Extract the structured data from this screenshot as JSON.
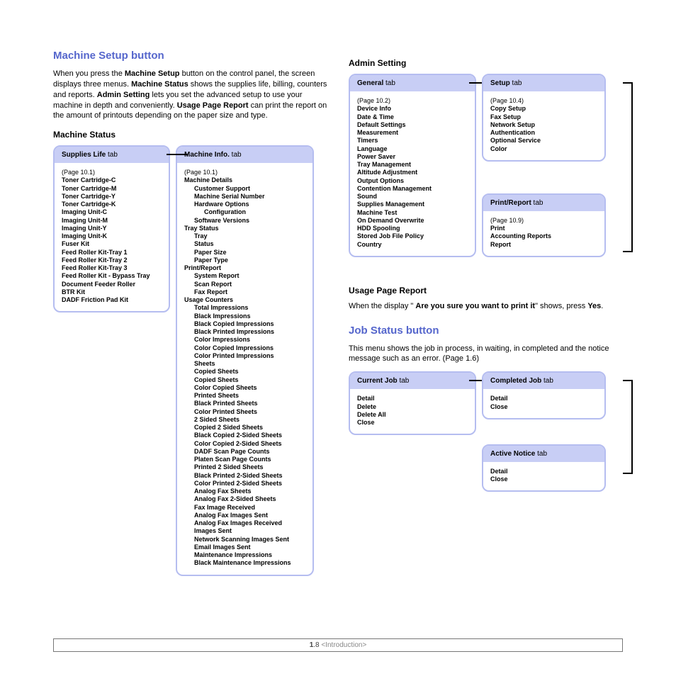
{
  "colors": {
    "accent": "#5566cc",
    "box_border": "#b5bdf0",
    "box_header_bg": "#c8cef5"
  },
  "left": {
    "heading": "Machine Setup button",
    "intro_parts": [
      "When you press the ",
      "Machine Setup",
      " button on the control panel, the screen displays three menus. ",
      "Machine Status",
      " shows the supplies life, billing, counters and reports. ",
      "Admin Setting",
      " lets you set the advanced setup to use your machine in depth and conveniently. ",
      "Usage Page Report",
      " can print the report on the amount of printouts depending on the paper size and type."
    ],
    "section": "Machine Status",
    "supplies": {
      "tab": "Supplies Life",
      "suffix": " tab",
      "page": "(Page 10.1)",
      "items": [
        "Toner Cartridge-C",
        "Toner Cartridge-M",
        "Toner Cartridge-Y",
        "Toner Cartridge-K",
        "Imaging Unit-C",
        "Imaging Unit-M",
        "Imaging Unit-Y",
        "Imaging Unit-K",
        "Fuser Kit",
        "Feed Roller Kit-Tray 1",
        "Feed Roller Kit-Tray 2",
        "Feed Roller Kit-Tray 3",
        "Feed Roller Kit - Bypass Tray",
        "Document Feeder Roller",
        "BTR Kit",
        "DADF Friction Pad Kit"
      ]
    },
    "machineinfo": {
      "tab": "Machine Info.",
      "suffix": " tab",
      "page": "(Page 10.1)",
      "tree": [
        {
          "l": 0,
          "t": "Machine Details"
        },
        {
          "l": 1,
          "t": "Customer Support"
        },
        {
          "l": 1,
          "t": "Machine Serial Number"
        },
        {
          "l": 1,
          "t": "Hardware Options"
        },
        {
          "l": 2,
          "t": "Configuration"
        },
        {
          "l": 1,
          "t": "Software Versions"
        },
        {
          "l": 0,
          "t": "Tray Status"
        },
        {
          "l": 1,
          "t": "Tray"
        },
        {
          "l": 1,
          "t": "Status"
        },
        {
          "l": 1,
          "t": "Paper Size"
        },
        {
          "l": 1,
          "t": "Paper Type"
        },
        {
          "l": 0,
          "t": "Print/Report"
        },
        {
          "l": 1,
          "t": "System Report"
        },
        {
          "l": 1,
          "t": "Scan Report"
        },
        {
          "l": 1,
          "t": "Fax Report"
        },
        {
          "l": 0,
          "t": "Usage Counters"
        },
        {
          "l": 1,
          "t": "Total Impressions"
        },
        {
          "l": 1,
          "t": "Black Impressions"
        },
        {
          "l": 1,
          "t": "Black Copied Impressions"
        },
        {
          "l": 1,
          "t": "Black Printed Impressions"
        },
        {
          "l": 1,
          "t": "Color Impressions"
        },
        {
          "l": 1,
          "t": "Color Copied Impressions"
        },
        {
          "l": 1,
          "t": "Color Printed Impressions"
        },
        {
          "l": 1,
          "t": "Sheets"
        },
        {
          "l": 1,
          "t": "Copied Sheets"
        },
        {
          "l": 1,
          "t": "Copied Sheets"
        },
        {
          "l": 1,
          "t": "Color Copied Sheets"
        },
        {
          "l": 1,
          "t": "Printed Sheets"
        },
        {
          "l": 1,
          "t": "Black Printed Sheets"
        },
        {
          "l": 1,
          "t": "Color Printed Sheets"
        },
        {
          "l": 1,
          "t": "2 Sided Sheets"
        },
        {
          "l": 1,
          "t": "Copied 2 Sided Sheets"
        },
        {
          "l": 1,
          "t": "Black Copied 2-Sided Sheets"
        },
        {
          "l": 1,
          "t": "Color Copied 2-Sided Sheets"
        },
        {
          "l": 1,
          "t": "DADF Scan Page Counts"
        },
        {
          "l": 1,
          "t": "Platen Scan Page Counts"
        },
        {
          "l": 1,
          "t": "Printed 2 Sided Sheets"
        },
        {
          "l": 1,
          "t": "Black Printed 2-Sided Sheets"
        },
        {
          "l": 1,
          "t": "Color Printed 2-Sided Sheets"
        },
        {
          "l": 1,
          "t": "Analog Fax Sheets"
        },
        {
          "l": 1,
          "t": "Analog Fax 2-Sided Sheets"
        },
        {
          "l": 1,
          "t": "Fax Image Received"
        },
        {
          "l": 1,
          "t": "Analog Fax Images Sent"
        },
        {
          "l": 1,
          "t": "Analog Fax Images Received"
        },
        {
          "l": 1,
          "t": "Images Sent"
        },
        {
          "l": 1,
          "t": "Network Scanning Images Sent"
        },
        {
          "l": 1,
          "t": "Email Images Sent"
        },
        {
          "l": 1,
          "t": "Maintenance Impressions"
        },
        {
          "l": 1,
          "t": "Black Maintenance Impressions"
        }
      ]
    }
  },
  "right": {
    "admin": {
      "heading": "Admin Setting",
      "general": {
        "tab": "General",
        "suffix": " tab",
        "page": "(Page 10.2)",
        "items": [
          "Device Info",
          "Date & Time",
          "Default Settings",
          "Measurement",
          "Timers",
          "Language",
          "Power Saver",
          "Tray Management",
          "Altitude Adjustment",
          "Output Options",
          "Contention Management",
          "Sound",
          "Supplies Management",
          "Machine Test",
          "On Demand Overwrite",
          "HDD Spooling",
          "Stored Job File Policy",
          "Country"
        ]
      },
      "setup": {
        "tab": "Setup",
        "suffix": " tab",
        "page": "(Page 10.4)",
        "items": [
          "Copy Setup",
          "Fax Setup",
          "Network Setup",
          "Authentication",
          "Optional Service",
          "Color"
        ]
      },
      "print": {
        "tab": "Print/Report",
        "suffix": " tab",
        "page": "(Page 10.9)",
        "items": [
          "Print",
          "Accounting Reports",
          "Report"
        ]
      }
    },
    "usage": {
      "heading": "Usage Page Report",
      "p1": "When the display  \" ",
      "bold": "Are you sure you want to print it",
      "p2": "\" shows, press ",
      "yes": "Yes",
      "p3": "."
    },
    "job": {
      "heading": "Job Status button",
      "intro": "This menu shows the job in process, in waiting, in completed and the notice message such as an error. (Page 1.6)",
      "current": {
        "tab": "Current Job",
        "suffix": " tab",
        "items": [
          "Detail",
          "Delete",
          "Delete All",
          "Close"
        ]
      },
      "completed": {
        "tab": "Completed Job",
        "suffix": " tab",
        "items": [
          "Detail",
          "Close"
        ]
      },
      "active": {
        "tab": "Active Notice",
        "suffix": " tab",
        "items": [
          "Detail",
          "Close"
        ]
      }
    }
  },
  "footer": {
    "page": "1",
    "sep": ".8",
    "label": "  <Introduction>"
  }
}
